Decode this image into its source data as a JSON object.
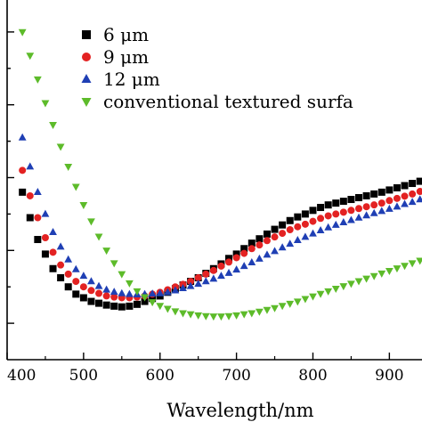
{
  "chart_data": {
    "type": "scatter",
    "xlabel": "Wavelength/nm",
    "ylabel": "",
    "xlim": [
      400,
      945
    ],
    "ylim": [
      0,
      10
    ],
    "x_ticks": [
      400,
      500,
      600,
      700,
      800,
      900
    ],
    "x_tick_labels": [
      "400",
      "500",
      "600",
      "700",
      "800",
      "900"
    ],
    "y_tick_values": [
      1,
      2,
      3,
      4,
      5,
      6,
      7,
      8,
      9
    ],
    "legend_position": "top-right",
    "series": [
      {
        "name": "6 μm",
        "marker": "square",
        "color": "#000000",
        "x": [
          420,
          430,
          440,
          450,
          460,
          470,
          480,
          490,
          500,
          510,
          520,
          530,
          540,
          550,
          560,
          570,
          580,
          590,
          600,
          610,
          620,
          630,
          640,
          650,
          660,
          670,
          680,
          690,
          700,
          710,
          720,
          730,
          740,
          750,
          760,
          770,
          780,
          790,
          800,
          810,
          820,
          830,
          840,
          850,
          860,
          870,
          880,
          890,
          900,
          910,
          920,
          930,
          940
        ],
        "y": [
          4.6,
          3.9,
          3.3,
          2.9,
          2.5,
          2.25,
          2.0,
          1.8,
          1.7,
          1.6,
          1.55,
          1.5,
          1.47,
          1.45,
          1.47,
          1.52,
          1.6,
          1.68,
          1.75,
          1.85,
          1.95,
          2.05,
          2.15,
          2.25,
          2.37,
          2.5,
          2.63,
          2.78,
          2.9,
          3.05,
          3.2,
          3.32,
          3.45,
          3.58,
          3.7,
          3.82,
          3.92,
          4.0,
          4.1,
          4.18,
          4.25,
          4.3,
          4.35,
          4.4,
          4.45,
          4.5,
          4.55,
          4.6,
          4.66,
          4.72,
          4.78,
          4.84,
          4.9
        ]
      },
      {
        "name": "9 μm",
        "marker": "circle",
        "color": "#e32222",
        "x": [
          420,
          430,
          440,
          450,
          460,
          470,
          480,
          490,
          500,
          510,
          520,
          530,
          540,
          550,
          560,
          570,
          580,
          590,
          600,
          610,
          620,
          630,
          640,
          650,
          660,
          670,
          680,
          690,
          700,
          710,
          720,
          730,
          740,
          750,
          760,
          770,
          780,
          790,
          800,
          810,
          820,
          830,
          840,
          850,
          860,
          870,
          880,
          890,
          900,
          910,
          920,
          930,
          940
        ],
        "y": [
          5.2,
          4.5,
          3.9,
          3.35,
          2.95,
          2.6,
          2.35,
          2.15,
          2.0,
          1.9,
          1.82,
          1.75,
          1.72,
          1.7,
          1.7,
          1.72,
          1.75,
          1.8,
          1.85,
          1.92,
          2.0,
          2.07,
          2.15,
          2.25,
          2.35,
          2.45,
          2.57,
          2.68,
          2.8,
          2.92,
          3.05,
          3.15,
          3.27,
          3.37,
          3.47,
          3.57,
          3.65,
          3.72,
          3.8,
          3.88,
          3.95,
          4.0,
          4.05,
          4.1,
          4.15,
          4.2,
          4.25,
          4.3,
          4.37,
          4.43,
          4.49,
          4.55,
          4.62
        ]
      },
      {
        "name": "12 μm",
        "marker": "triangle-up",
        "color": "#1f3fb4",
        "x": [
          420,
          430,
          440,
          450,
          460,
          470,
          480,
          490,
          500,
          510,
          520,
          530,
          540,
          550,
          560,
          570,
          580,
          590,
          600,
          610,
          620,
          630,
          640,
          650,
          660,
          670,
          680,
          690,
          700,
          710,
          720,
          730,
          740,
          750,
          760,
          770,
          780,
          790,
          800,
          810,
          820,
          830,
          840,
          850,
          860,
          870,
          880,
          890,
          900,
          910,
          920,
          930,
          940
        ],
        "y": [
          6.1,
          5.3,
          4.6,
          4.0,
          3.5,
          3.1,
          2.75,
          2.48,
          2.3,
          2.15,
          2.02,
          1.92,
          1.86,
          1.82,
          1.8,
          1.79,
          1.8,
          1.81,
          1.82,
          1.85,
          1.9,
          1.96,
          2.02,
          2.08,
          2.15,
          2.22,
          2.3,
          2.38,
          2.47,
          2.57,
          2.67,
          2.77,
          2.88,
          2.98,
          3.08,
          3.18,
          3.28,
          3.37,
          3.46,
          3.55,
          3.63,
          3.7,
          3.77,
          3.83,
          3.9,
          3.96,
          4.02,
          4.08,
          4.14,
          4.2,
          4.27,
          4.33,
          4.4
        ]
      },
      {
        "name": "conventional textured surfa",
        "marker": "triangle-down",
        "color": "#5dbb2a",
        "x": [
          420,
          430,
          440,
          450,
          460,
          470,
          480,
          490,
          500,
          510,
          520,
          530,
          540,
          550,
          560,
          570,
          580,
          590,
          600,
          610,
          620,
          630,
          640,
          650,
          660,
          670,
          680,
          690,
          700,
          710,
          720,
          730,
          740,
          750,
          760,
          770,
          780,
          790,
          800,
          810,
          820,
          830,
          840,
          850,
          860,
          870,
          880,
          890,
          900,
          910,
          920,
          930,
          940
        ],
        "y": [
          9.0,
          8.35,
          7.7,
          7.05,
          6.45,
          5.85,
          5.3,
          4.75,
          4.25,
          3.8,
          3.38,
          3.0,
          2.65,
          2.35,
          2.1,
          1.88,
          1.72,
          1.58,
          1.48,
          1.4,
          1.33,
          1.28,
          1.25,
          1.22,
          1.2,
          1.19,
          1.19,
          1.2,
          1.22,
          1.25,
          1.28,
          1.32,
          1.37,
          1.42,
          1.48,
          1.54,
          1.6,
          1.67,
          1.74,
          1.81,
          1.88,
          1.95,
          2.02,
          2.09,
          2.16,
          2.23,
          2.3,
          2.37,
          2.44,
          2.51,
          2.58,
          2.65,
          2.72
        ]
      }
    ]
  }
}
